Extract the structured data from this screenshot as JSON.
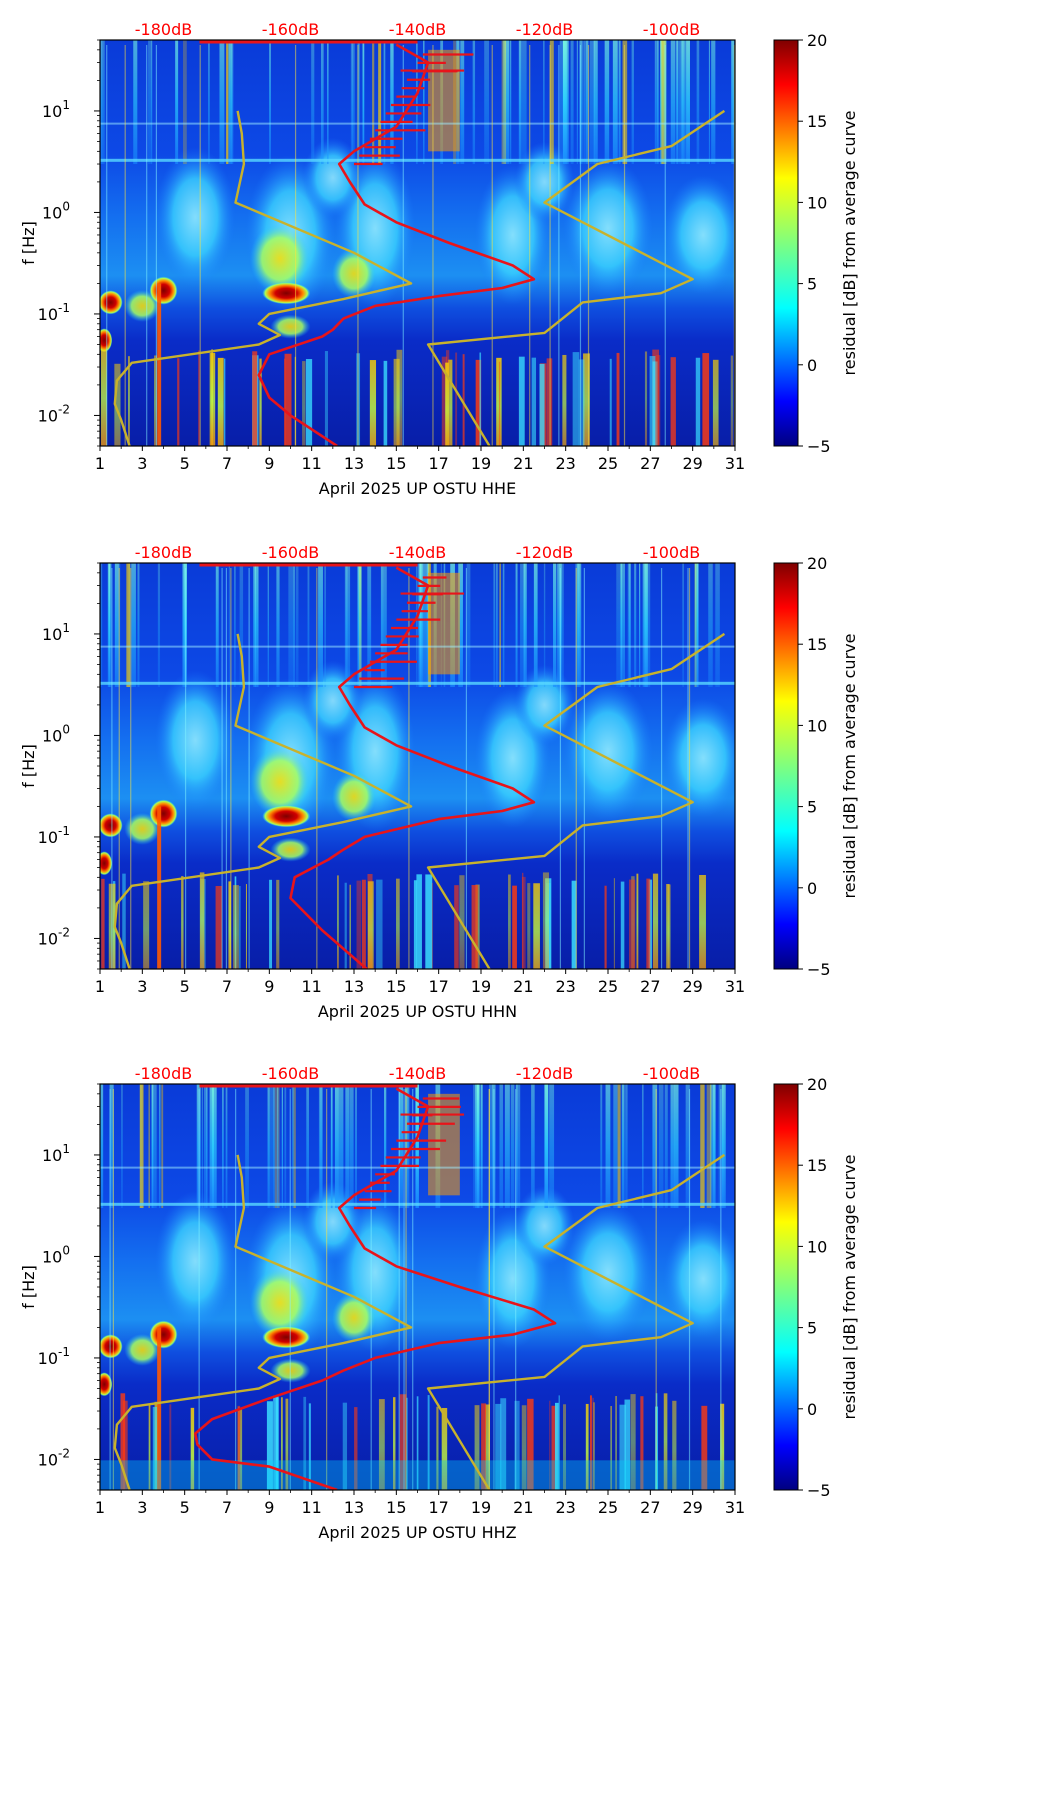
{
  "figure": {
    "x_tick_labels": [
      "1",
      "3",
      "5",
      "7",
      "9",
      "11",
      "13",
      "15",
      "17",
      "19",
      "21",
      "23",
      "25",
      "27",
      "29",
      "31"
    ],
    "y_tick_labels": [
      "10",
      "10",
      "10",
      "10"
    ],
    "y_tick_exponents": [
      "-2",
      "-1",
      "0",
      "1"
    ],
    "y_axis_label": "f [Hz]",
    "db_labels": [
      "-180dB",
      "-160dB",
      "-140dB",
      "-120dB",
      "-100dB"
    ],
    "colorbar_label": "residual [dB] from average curve",
    "colorbar_ticks": [
      "20",
      "15",
      "10",
      "5",
      "0",
      "−5"
    ],
    "colors": {
      "red_curve": "#e8141a",
      "gold_curve": "#c8b22c",
      "db_label": "#ff0000"
    }
  },
  "chart_data": [
    {
      "type": "heatmap",
      "title": "April 2025 UP OSTU  HHE",
      "xlabel": "April 2025 UP OSTU  HHE",
      "ylabel": "f [Hz]",
      "xlim": [
        1,
        31
      ],
      "ylim_hz": [
        0.005,
        50
      ],
      "yscale": "log",
      "top_axis": {
        "labels": [
          "-180dB",
          "-160dB",
          "-140dB",
          "-120dB",
          "-100dB"
        ],
        "days": [
          4,
          10,
          16,
          22,
          28
        ]
      },
      "colorbar": {
        "label": "residual [dB] from average curve",
        "range": [
          -5,
          20
        ],
        "ticks": [
          -5,
          0,
          5,
          10,
          15,
          20
        ]
      },
      "series": [
        {
          "name": "red_curve",
          "points": [
            [
              12.2,
              0.005
            ],
            [
              10,
              0.01
            ],
            [
              9,
              0.015
            ],
            [
              8.5,
              0.025
            ],
            [
              9,
              0.04
            ],
            [
              11.5,
              0.06
            ],
            [
              12,
              0.07
            ],
            [
              12.5,
              0.09
            ],
            [
              14,
              0.12
            ],
            [
              17,
              0.15
            ],
            [
              20,
              0.18
            ],
            [
              21.5,
              0.22
            ],
            [
              20.5,
              0.3
            ],
            [
              17.5,
              0.5
            ],
            [
              15,
              0.8
            ],
            [
              13.5,
              1.2
            ],
            [
              12.8,
              2
            ],
            [
              12.3,
              3
            ],
            [
              13,
              4
            ],
            [
              15,
              7
            ],
            [
              16,
              15
            ],
            [
              16.5,
              30
            ],
            [
              15,
              45
            ]
          ]
        },
        {
          "name": "gold_curve_left",
          "points": [
            [
              2.4,
              0.005
            ],
            [
              2,
              0.009
            ],
            [
              1.7,
              0.013
            ],
            [
              1.8,
              0.022
            ],
            [
              2.5,
              0.033
            ],
            [
              8.5,
              0.05
            ],
            [
              9.5,
              0.062
            ],
            [
              8.5,
              0.08
            ],
            [
              9,
              0.1
            ],
            [
              12.5,
              0.14
            ],
            [
              15.7,
              0.2
            ],
            [
              13,
              0.4
            ],
            [
              7.4,
              1.25
            ],
            [
              7.8,
              3
            ],
            [
              7.7,
              6
            ],
            [
              7.5,
              10
            ]
          ]
        },
        {
          "name": "gold_curve_right",
          "points": [
            [
              19.4,
              0.005
            ],
            [
              16.5,
              0.05
            ],
            [
              22,
              0.065
            ],
            [
              23.8,
              0.13
            ],
            [
              27.5,
              0.16
            ],
            [
              29,
              0.22
            ],
            [
              22,
              1.25
            ],
            [
              24.5,
              3
            ],
            [
              28,
              4.5
            ],
            [
              30.5,
              10
            ]
          ]
        }
      ]
    },
    {
      "type": "heatmap",
      "title": "April 2025 UP OSTU  HHN",
      "xlabel": "April 2025 UP OSTU  HHN",
      "ylabel": "f [Hz]",
      "xlim": [
        1,
        31
      ],
      "ylim_hz": [
        0.005,
        50
      ],
      "yscale": "log",
      "top_axis": {
        "labels": [
          "-180dB",
          "-160dB",
          "-140dB",
          "-120dB",
          "-100dB"
        ],
        "days": [
          4,
          10,
          16,
          22,
          28
        ]
      },
      "colorbar": {
        "label": "residual [dB] from average curve",
        "range": [
          -5,
          20
        ],
        "ticks": [
          -5,
          0,
          5,
          10,
          15,
          20
        ]
      },
      "series": [
        {
          "name": "red_curve",
          "points": [
            [
              13.6,
              0.005
            ],
            [
              11.5,
              0.012
            ],
            [
              10,
              0.025
            ],
            [
              10.2,
              0.04
            ],
            [
              11.8,
              0.06
            ],
            [
              12.5,
              0.075
            ],
            [
              13.5,
              0.1
            ],
            [
              17,
              0.15
            ],
            [
              20,
              0.18
            ],
            [
              21.5,
              0.22
            ],
            [
              20.5,
              0.3
            ],
            [
              17.5,
              0.5
            ],
            [
              15,
              0.8
            ],
            [
              13.5,
              1.2
            ],
            [
              12.8,
              2
            ],
            [
              12.3,
              3
            ],
            [
              13,
              4
            ],
            [
              15,
              7
            ],
            [
              16,
              15
            ],
            [
              16.5,
              30
            ],
            [
              15,
              45
            ]
          ]
        },
        {
          "name": "gold_curve_left",
          "points": [
            [
              2.4,
              0.005
            ],
            [
              2,
              0.009
            ],
            [
              1.7,
              0.013
            ],
            [
              1.8,
              0.022
            ],
            [
              2.5,
              0.033
            ],
            [
              8.5,
              0.05
            ],
            [
              9.5,
              0.062
            ],
            [
              8.5,
              0.08
            ],
            [
              9,
              0.1
            ],
            [
              12.5,
              0.14
            ],
            [
              15.7,
              0.2
            ],
            [
              13,
              0.4
            ],
            [
              7.4,
              1.25
            ],
            [
              7.8,
              3
            ],
            [
              7.7,
              6
            ],
            [
              7.5,
              10
            ]
          ]
        },
        {
          "name": "gold_curve_right",
          "points": [
            [
              19.4,
              0.005
            ],
            [
              16.5,
              0.05
            ],
            [
              22,
              0.065
            ],
            [
              23.8,
              0.13
            ],
            [
              27.5,
              0.16
            ],
            [
              29,
              0.22
            ],
            [
              22,
              1.25
            ],
            [
              24.5,
              3
            ],
            [
              28,
              4.5
            ],
            [
              30.5,
              10
            ]
          ]
        }
      ]
    },
    {
      "type": "heatmap",
      "title": "April 2025 UP OSTU  HHZ",
      "xlabel": "April 2025 UP OSTU  HHZ",
      "ylabel": "f [Hz]",
      "xlim": [
        1,
        31
      ],
      "ylim_hz": [
        0.005,
        50
      ],
      "yscale": "log",
      "top_axis": {
        "labels": [
          "-180dB",
          "-160dB",
          "-140dB",
          "-120dB",
          "-100dB"
        ],
        "days": [
          4,
          10,
          16,
          22,
          28
        ]
      },
      "colorbar": {
        "label": "residual [dB] from average curve",
        "range": [
          -5,
          20
        ],
        "ticks": [
          -5,
          0,
          5,
          10,
          15,
          20
        ]
      },
      "series": [
        {
          "name": "red_curve",
          "points": [
            [
              12.2,
              0.005
            ],
            [
              9,
              0.0085
            ],
            [
              6.3,
              0.01
            ],
            [
              5.6,
              0.014
            ],
            [
              5.5,
              0.018
            ],
            [
              6.3,
              0.025
            ],
            [
              9,
              0.04
            ],
            [
              11.5,
              0.06
            ],
            [
              12.5,
              0.075
            ],
            [
              14,
              0.1
            ],
            [
              17,
              0.14
            ],
            [
              20.5,
              0.17
            ],
            [
              22.5,
              0.22
            ],
            [
              21.5,
              0.3
            ],
            [
              18,
              0.5
            ],
            [
              15,
              0.8
            ],
            [
              13.5,
              1.2
            ],
            [
              12.8,
              2
            ],
            [
              12.3,
              3
            ],
            [
              13,
              4
            ],
            [
              15,
              7
            ],
            [
              16,
              15
            ],
            [
              16.5,
              30
            ],
            [
              15,
              45
            ]
          ]
        },
        {
          "name": "gold_curve_left",
          "points": [
            [
              2.4,
              0.005
            ],
            [
              2,
              0.009
            ],
            [
              1.7,
              0.013
            ],
            [
              1.8,
              0.022
            ],
            [
              2.5,
              0.033
            ],
            [
              8.5,
              0.05
            ],
            [
              9.5,
              0.062
            ],
            [
              8.5,
              0.08
            ],
            [
              9,
              0.1
            ],
            [
              12.5,
              0.14
            ],
            [
              15.7,
              0.2
            ],
            [
              13,
              0.4
            ],
            [
              7.4,
              1.25
            ],
            [
              7.8,
              3
            ],
            [
              7.7,
              6
            ],
            [
              7.5,
              10
            ]
          ]
        },
        {
          "name": "gold_curve_right",
          "points": [
            [
              19.4,
              0.005
            ],
            [
              16.5,
              0.05
            ],
            [
              22,
              0.065
            ],
            [
              23.8,
              0.13
            ],
            [
              27.5,
              0.16
            ],
            [
              29,
              0.22
            ],
            [
              22,
              1.25
            ],
            [
              24.5,
              3
            ],
            [
              28,
              4.5
            ],
            [
              30.5,
              10
            ]
          ]
        }
      ]
    }
  ]
}
